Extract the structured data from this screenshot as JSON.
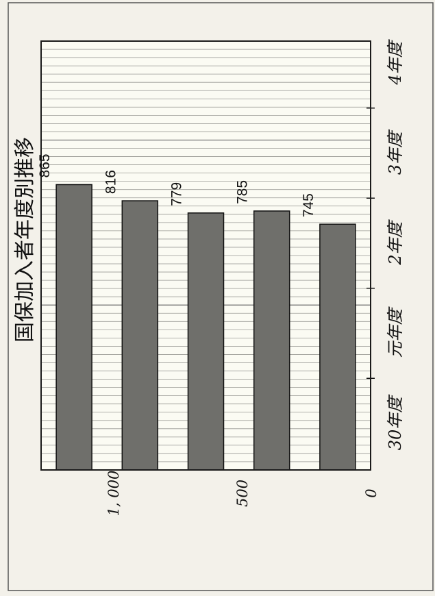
{
  "chart_data": {
    "type": "bar",
    "orientation": "horizontal",
    "title": "国保加入者年度別推移",
    "categories": [
      "30年度",
      "元年度",
      "2年度",
      "3年度",
      "4年度"
    ],
    "values": [
      865,
      816,
      779,
      785,
      745
    ],
    "xticks": [
      0,
      500,
      1000
    ],
    "xtick_labels": [
      "0",
      "500",
      "1, 000"
    ],
    "xlim": [
      0,
      1300
    ],
    "grid": true,
    "bar_color": "#6f6f6b",
    "data_labels": [
      "865",
      "816",
      "779",
      "785",
      "745"
    ]
  }
}
